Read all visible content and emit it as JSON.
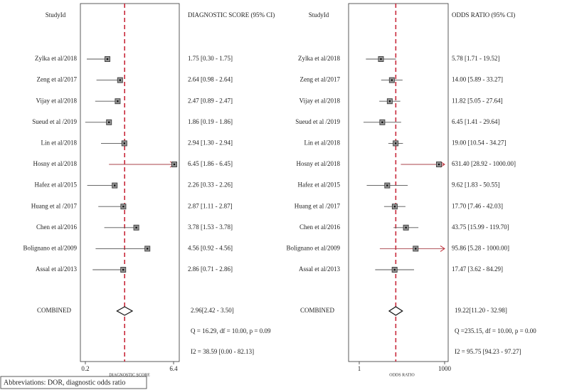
{
  "chart_data": [
    {
      "type": "forest",
      "study_header": "StudyId",
      "estimate_header": "DIAGNOSTIC SCORE (95% CI)",
      "categories": [
        "Zylka et al/2018",
        "Zeng et al/2017",
        "Vijay et al/2018",
        "Sueud et al /2019",
        "Lin et al/2018",
        "Hosny et al/2018",
        "Hafez et al/2015",
        "Huang et al /2017",
        "Chen et al/2016",
        "Bolignano et al/2009",
        "Assal et al/2013"
      ],
      "values": [
        1.75,
        2.64,
        2.47,
        1.86,
        2.94,
        6.45,
        2.26,
        2.87,
        3.78,
        4.56,
        2.86
      ],
      "lower": [
        0.3,
        0.98,
        0.89,
        0.19,
        1.3,
        1.86,
        0.33,
        1.11,
        1.53,
        0.92,
        0.71
      ],
      "upper": [
        1.75,
        2.64,
        2.47,
        1.86,
        2.94,
        6.45,
        2.26,
        2.87,
        3.78,
        4.56,
        2.86
      ],
      "value_labels": [
        "1.75 [0.30 - 1.75]",
        "2.64 [0.98 - 2.64]",
        "2.47 [0.89 - 2.47]",
        "1.86 [0.19 - 1.86]",
        "2.94 [1.30 - 2.94]",
        "6.45 [1.86 - 6.45]",
        "2.26 [0.33 - 2.26]",
        "2.87 [1.11 - 2.87]",
        "3.78 [1.53 - 3.78]",
        "4.56 [0.92 - 4.56]",
        "2.86 [0.71 - 2.86]"
      ],
      "pooled": {
        "label": "COMBINED",
        "value": 2.96,
        "lower": 2.42,
        "upper": 3.5,
        "value_label": "2.96[2.42 - 3.50]"
      },
      "heterogeneity": [
        "Q = 16.29, df = 10.00, p = 0.09",
        "I2 = 38.59 [0.00 - 82.13]"
      ],
      "xlabel": "DIAGNOSTIC SCORE",
      "xlim": [
        0.2,
        6.4
      ],
      "xticks": [
        0.2,
        6.4
      ],
      "log_x": false,
      "marker_color": "#444444",
      "reference_color": "#c8283a"
    },
    {
      "type": "forest",
      "study_header": "StudyId",
      "estimate_header": "ODDS RATIO (95% CI)",
      "categories": [
        "Zylka et al/2018",
        "Zeng et al/2017",
        "Vijay et al/2018",
        "Sueud et al /2019",
        "Lin et al/2018",
        "Hosny et al/2018",
        "Hafez et al/2015",
        "Huang et al /2017",
        "Chen et al/2016",
        "Bolignano et al/2009",
        "Assal et al/2013"
      ],
      "values": [
        5.78,
        14.0,
        11.82,
        6.45,
        19.0,
        631.4,
        9.62,
        17.7,
        43.75,
        95.86,
        17.47
      ],
      "lower": [
        1.71,
        5.89,
        5.05,
        1.41,
        10.54,
        28.92,
        1.83,
        7.46,
        15.99,
        5.28,
        3.62
      ],
      "upper": [
        19.52,
        33.27,
        27.64,
        29.64,
        34.27,
        1000.0,
        50.55,
        42.03,
        119.7,
        1000.0,
        84.29
      ],
      "value_labels": [
        "5.78 [1.71 - 19.52]",
        "14.00 [5.89 - 33.27]",
        "11.82 [5.05 - 27.64]",
        "6.45 [1.41 - 29.64]",
        "19.00 [10.54 - 34.27]",
        "631.40 [28.92 - 1000.00]",
        "9.62 [1.83 - 50.55]",
        "17.70 [7.46 - 42.03]",
        "43.75 [15.99 - 119.70]",
        "95.86 [5.28 - 1000.00]",
        "17.47 [3.62 - 84.29]"
      ],
      "pooled": {
        "label": "COMBINED",
        "value": 19.22,
        "lower": 11.2,
        "upper": 32.98,
        "value_label": "19.22[11.20 - 32.98]"
      },
      "heterogeneity": [
        "Q =235.15, df = 10.00, p = 0.00",
        "I2 = 95.75 [94.23 - 97.27]"
      ],
      "xlabel": "ODDS RATIO",
      "xlim": [
        1,
        1000
      ],
      "xticks": [
        1,
        1000
      ],
      "log_x": true,
      "marker_color": "#444444",
      "reference_color": "#c8283a"
    }
  ],
  "footnote": "Abbreviations: DOR, diagnostic odds ratio"
}
